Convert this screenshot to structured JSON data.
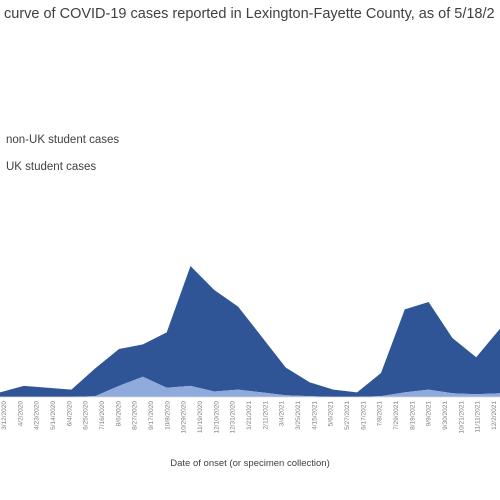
{
  "chart_data": {
    "type": "area",
    "title": "curve of COVID-19 cases reported in Lexington-Fayette County, as of 5/18/2",
    "xlabel": "Date of onset (or specimen collection)",
    "ylabel": "",
    "stacked": true,
    "legend_position": "left",
    "grid": false,
    "colors": {
      "non_uk": "#2f5597",
      "uk": "#8faadc"
    },
    "x_tick_labels": [
      "3/12/2020",
      "4/2/2020",
      "4/23/2020",
      "5/14/2020",
      "6/4/2020",
      "6/25/2020",
      "7/16/2020",
      "8/6/2020",
      "8/27/2020",
      "9/17/2020",
      "10/8/2020",
      "10/29/2020",
      "11/19/2020",
      "12/10/2020",
      "12/31/2020",
      "1/21/2021",
      "2/11/2021",
      "3/4/2021",
      "3/25/2021",
      "4/15/2021",
      "5/6/2021",
      "5/27/2021",
      "6/17/2021",
      "7/8/2021",
      "7/29/2021",
      "8/19/2021",
      "9/9/2021",
      "9/30/2021",
      "10/21/2021",
      "11/11/2021",
      "12/2/2021"
    ],
    "x": [
      "Mar 2020",
      "Apr 2020",
      "May 2020",
      "Jun 2020",
      "Jul 2020",
      "Aug 2020",
      "Sep 2020",
      "Oct 2020",
      "Nov 2020",
      "Dec 2020",
      "Jan 2021",
      "Feb 2021",
      "Mar 2021",
      "Apr 2021",
      "May 2021",
      "Jun 2021",
      "Jul 2021",
      "Aug 2021",
      "Sep 2021",
      "Oct 2021",
      "Nov 2021",
      "Dec 2021"
    ],
    "ylim": [
      0,
      400
    ],
    "series": [
      {
        "name": "non-UK student cases",
        "values": [
          5,
          12,
          10,
          8,
          30,
          40,
          35,
          60,
          130,
          110,
          90,
          60,
          30,
          15,
          8,
          5,
          25,
          90,
          95,
          60,
          40,
          70
        ]
      },
      {
        "name": "UK student cases",
        "values": [
          0,
          0,
          0,
          0,
          1,
          12,
          22,
          10,
          12,
          6,
          8,
          5,
          2,
          1,
          0,
          0,
          1,
          5,
          8,
          4,
          3,
          4
        ]
      }
    ]
  }
}
